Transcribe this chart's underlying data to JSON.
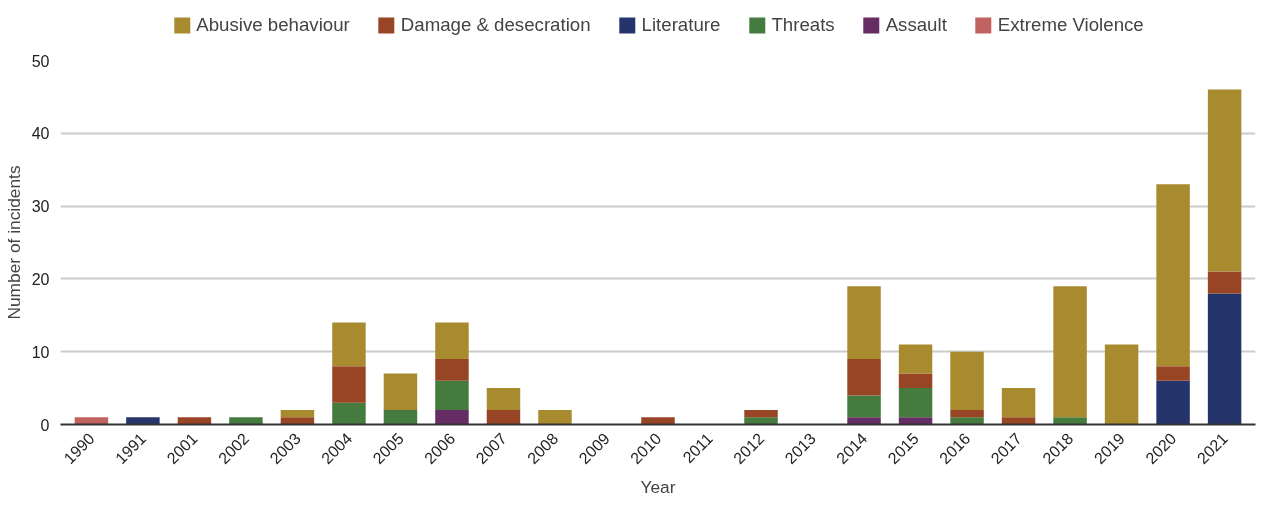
{
  "chart_data": {
    "type": "bar",
    "stacked": true,
    "xlabel": "Year",
    "ylabel": "Number of incidents",
    "categories": [
      "1990",
      "1991",
      "2001",
      "2002",
      "2003",
      "2004",
      "2005",
      "2006",
      "2007",
      "2008",
      "2009",
      "2010",
      "2011",
      "2012",
      "2013",
      "2014",
      "2015",
      "2016",
      "2017",
      "2018",
      "2019",
      "2020",
      "2021"
    ],
    "series": [
      {
        "name": "Extreme Violence",
        "color": "#c0625f",
        "values": [
          1,
          0,
          0,
          0,
          0,
          0,
          0,
          0,
          0,
          0,
          0,
          0,
          0,
          0,
          0,
          0,
          0,
          0,
          0,
          0,
          0,
          0,
          0
        ]
      },
      {
        "name": "Assault",
        "color": "#652d63",
        "values": [
          0,
          0,
          0,
          0,
          0,
          0,
          0,
          2,
          0,
          0,
          0,
          0,
          0,
          0,
          0,
          1,
          1,
          0,
          0,
          0,
          0,
          0,
          0
        ]
      },
      {
        "name": "Threats",
        "color": "#457b3f",
        "values": [
          0,
          0,
          0,
          1,
          0,
          3,
          2,
          4,
          0,
          0,
          0,
          0,
          0,
          1,
          0,
          3,
          4,
          1,
          0,
          1,
          0,
          0,
          0
        ]
      },
      {
        "name": "Literature",
        "color": "#25346b",
        "values": [
          0,
          1,
          0,
          0,
          0,
          0,
          0,
          0,
          0,
          0,
          0,
          0,
          0,
          0,
          0,
          0,
          0,
          0,
          0,
          0,
          0,
          6,
          18
        ]
      },
      {
        "name": "Damage & desecration",
        "color": "#974525",
        "values": [
          0,
          0,
          1,
          0,
          1,
          5,
          0,
          3,
          2,
          0,
          0,
          1,
          0,
          1,
          0,
          5,
          2,
          1,
          1,
          0,
          0,
          2,
          3
        ]
      },
      {
        "name": "Abusive behaviour",
        "color": "#a98b2f",
        "values": [
          0,
          0,
          0,
          0,
          1,
          6,
          5,
          5,
          3,
          2,
          0,
          0,
          0,
          0,
          0,
          10,
          4,
          8,
          4,
          18,
          11,
          25,
          25
        ]
      }
    ],
    "ylim": [
      0,
      50
    ],
    "yticks": [
      0,
      10,
      20,
      30,
      40,
      50
    ],
    "grid": "y",
    "legend": "top"
  }
}
